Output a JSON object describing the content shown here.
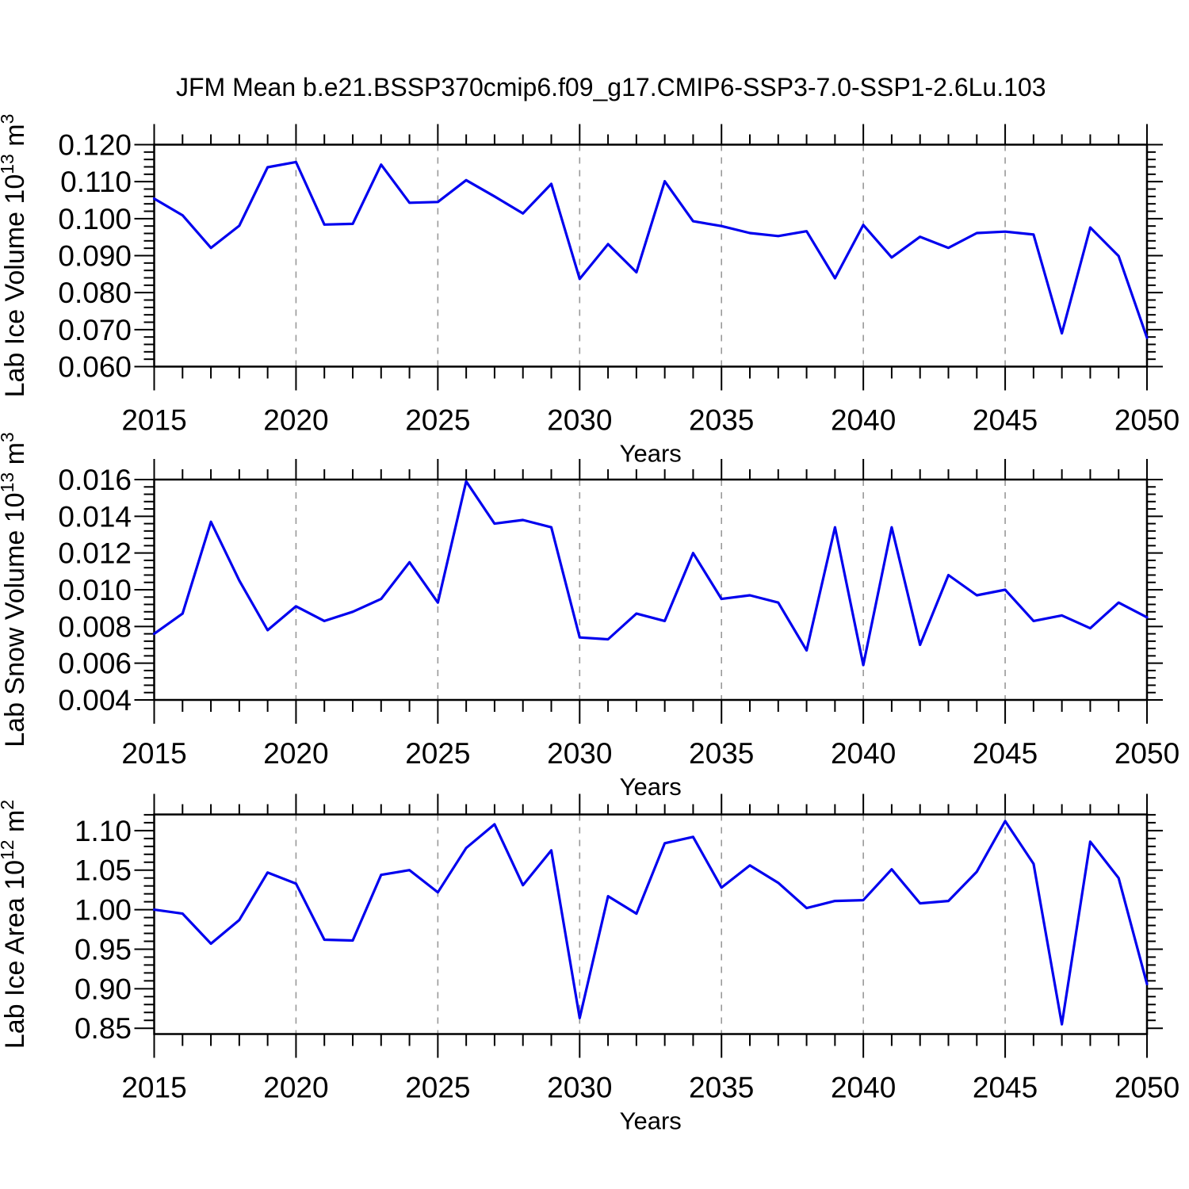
{
  "title": "JFM Mean b.e21.BSSP370cmip6.f09_g17.CMIP6-SSP3-7.0-SSP1-2.6Lu.103",
  "colors": {
    "line": "#0000EE",
    "grid": "#999999",
    "axis": "#000000",
    "text": "#000000",
    "background": "#FFFFFF"
  },
  "chart_data": [
    {
      "type": "line",
      "name": "lab-ice-volume",
      "ylabel": "Lab Ice Volume 10^13 m^3",
      "ylabel_parts": [
        {
          "t": "Lab Ice Volume 10",
          "sup": false
        },
        {
          "t": "13",
          "sup": true
        },
        {
          "t": " m",
          "sup": false
        },
        {
          "t": "3",
          "sup": true
        }
      ],
      "xlabel": "Years",
      "xlim": [
        2015,
        2050
      ],
      "ylim": [
        0.06,
        0.12
      ],
      "x_tick_values": [
        2015,
        2020,
        2025,
        2030,
        2035,
        2040,
        2045,
        2050
      ],
      "x_tick_labels": [
        "2015",
        "2020",
        "2025",
        "2030",
        "2035",
        "2040",
        "2045",
        "2050"
      ],
      "grid_years": [
        2020,
        2025,
        2030,
        2035,
        2040,
        2045
      ],
      "x_minor_step": 1,
      "y_tick_values": [
        0.06,
        0.07,
        0.08,
        0.09,
        0.1,
        0.11,
        0.12
      ],
      "y_tick_labels": [
        "0.060",
        "0.070",
        "0.080",
        "0.090",
        "0.100",
        "0.110",
        "0.120"
      ],
      "y_minor_step": 0.002,
      "legend": "none",
      "grid": "vertical-dashed",
      "x": [
        2015,
        2016,
        2017,
        2018,
        2019,
        2020,
        2021,
        2022,
        2023,
        2024,
        2025,
        2026,
        2027,
        2028,
        2029,
        2030,
        2031,
        2032,
        2033,
        2034,
        2035,
        2036,
        2037,
        2038,
        2039,
        2040,
        2041,
        2042,
        2043,
        2044,
        2045,
        2046,
        2047,
        2048,
        2049,
        2050
      ],
      "values": [
        0.1054,
        0.1009,
        0.0921,
        0.0981,
        0.1139,
        0.1153,
        0.0984,
        0.0986,
        0.1146,
        0.1043,
        0.1045,
        0.1104,
        0.106,
        0.1014,
        0.1094,
        0.0837,
        0.0931,
        0.0855,
        0.1101,
        0.0993,
        0.098,
        0.0961,
        0.0953,
        0.0966,
        0.0839,
        0.0983,
        0.0895,
        0.0951,
        0.0921,
        0.0961,
        0.0965,
        0.0957,
        0.069,
        0.0976,
        0.0899,
        0.0678
      ]
    },
    {
      "type": "line",
      "name": "lab-snow-volume",
      "ylabel": "Lab Snow Volume 10^13 m^3",
      "ylabel_parts": [
        {
          "t": "Lab Snow Volume 10",
          "sup": false
        },
        {
          "t": "13",
          "sup": true
        },
        {
          "t": " m",
          "sup": false
        },
        {
          "t": "3",
          "sup": true
        }
      ],
      "xlabel": "Years",
      "xlim": [
        2015,
        2050
      ],
      "ylim": [
        0.004,
        0.016
      ],
      "x_tick_values": [
        2015,
        2020,
        2025,
        2030,
        2035,
        2040,
        2045,
        2050
      ],
      "x_tick_labels": [
        "2015",
        "2020",
        "2025",
        "2030",
        "2035",
        "2040",
        "2045",
        "2050"
      ],
      "grid_years": [
        2020,
        2025,
        2030,
        2035,
        2040,
        2045
      ],
      "x_minor_step": 1,
      "y_tick_values": [
        0.004,
        0.006,
        0.008,
        0.01,
        0.012,
        0.014,
        0.016
      ],
      "y_tick_labels": [
        "0.004",
        "0.006",
        "0.008",
        "0.010",
        "0.012",
        "0.014",
        "0.016"
      ],
      "y_minor_step": 0.0004,
      "legend": "none",
      "grid": "vertical-dashed",
      "x": [
        2015,
        2016,
        2017,
        2018,
        2019,
        2020,
        2021,
        2022,
        2023,
        2024,
        2025,
        2026,
        2027,
        2028,
        2029,
        2030,
        2031,
        2032,
        2033,
        2034,
        2035,
        2036,
        2037,
        2038,
        2039,
        2040,
        2041,
        2042,
        2043,
        2044,
        2045,
        2046,
        2047,
        2048,
        2049,
        2050
      ],
      "values": [
        0.0076,
        0.0087,
        0.0137,
        0.0105,
        0.0078,
        0.0091,
        0.0083,
        0.0088,
        0.0095,
        0.0115,
        0.0093,
        0.0159,
        0.0136,
        0.0138,
        0.0134,
        0.0074,
        0.0073,
        0.0087,
        0.0083,
        0.012,
        0.0095,
        0.0097,
        0.0093,
        0.0067,
        0.0134,
        0.0059,
        0.0134,
        0.007,
        0.0108,
        0.0097,
        0.01,
        0.0083,
        0.0086,
        0.0079,
        0.0093,
        0.0085
      ]
    },
    {
      "type": "line",
      "name": "lab-ice-area",
      "ylabel": "Lab Ice Area 10^12 m^2",
      "ylabel_parts": [
        {
          "t": "Lab Ice Area 10",
          "sup": false
        },
        {
          "t": "12",
          "sup": true
        },
        {
          "t": " m",
          "sup": false
        },
        {
          "t": "2",
          "sup": true
        }
      ],
      "xlabel": "Years",
      "xlim": [
        2015,
        2050
      ],
      "ylim": [
        0.8427,
        1.1204
      ],
      "x_tick_values": [
        2015,
        2020,
        2025,
        2030,
        2035,
        2040,
        2045,
        2050
      ],
      "x_tick_labels": [
        "2015",
        "2020",
        "2025",
        "2030",
        "2035",
        "2040",
        "2045",
        "2050"
      ],
      "grid_years": [
        2020,
        2025,
        2030,
        2035,
        2040,
        2045
      ],
      "x_minor_step": 1,
      "y_tick_values": [
        0.85,
        0.9,
        0.95,
        1.0,
        1.05,
        1.1
      ],
      "y_tick_labels": [
        "0.85",
        "0.90",
        "0.95",
        "1.00",
        "1.05",
        "1.10"
      ],
      "y_minor_step": 0.01,
      "legend": "none",
      "grid": "vertical-dashed",
      "x": [
        2015,
        2016,
        2017,
        2018,
        2019,
        2020,
        2021,
        2022,
        2023,
        2024,
        2025,
        2026,
        2027,
        2028,
        2029,
        2030,
        2031,
        2032,
        2033,
        2034,
        2035,
        2036,
        2037,
        2038,
        2039,
        2040,
        2041,
        2042,
        2043,
        2044,
        2045,
        2046,
        2047,
        2048,
        2049,
        2050
      ],
      "values": [
        1.0,
        0.995,
        0.957,
        0.987,
        1.047,
        1.033,
        0.962,
        0.961,
        1.044,
        1.05,
        1.022,
        1.078,
        1.108,
        1.031,
        1.075,
        0.863,
        1.017,
        0.995,
        1.084,
        1.092,
        1.028,
        1.056,
        1.034,
        1.002,
        1.011,
        1.012,
        1.051,
        1.008,
        1.011,
        1.048,
        1.112,
        1.058,
        0.855,
        1.086,
        1.04,
        0.906
      ]
    }
  ]
}
